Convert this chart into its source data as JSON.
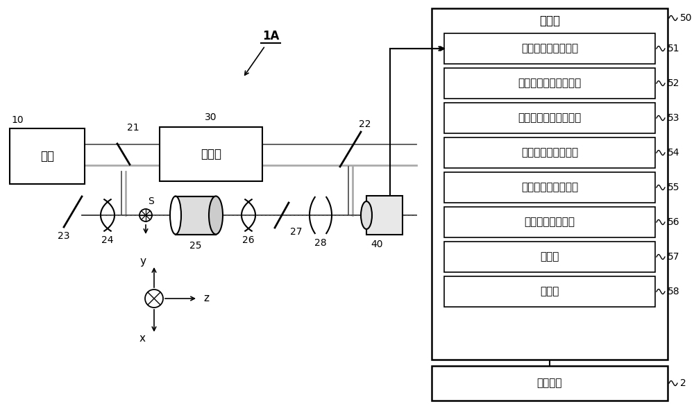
{
  "bg_color": "#ffffff",
  "fig_width": 10.0,
  "fig_height": 5.92,
  "label_1A": "1A",
  "label_10": "10",
  "label_21": "21",
  "label_22": "22",
  "label_23": "23",
  "label_24": "24",
  "label_25": "25",
  "label_26": "26",
  "label_27": "27",
  "label_28": "28",
  "label_30": "30",
  "label_40": "40",
  "label_50": "50",
  "label_51": "51",
  "label_52": "52",
  "label_53": "53",
  "label_54": "54",
  "label_55": "55",
  "label_56": "56",
  "label_57": "57",
  "label_58": "58",
  "label_2": "2",
  "label_S": "S",
  "text_guangyuan": "光源",
  "text_pinyiqi": "移频器",
  "text_jiexi": "解析部",
  "text_box51": "干涉强度图像取得部",
  "text_box52": "第一复振幅图像生成部",
  "text_box53": "第二复振幅图像生成部",
  "text_box54": "二维相位图像生成部",
  "text_box55": "三维相位图像生成部",
  "text_box56": "折射率分布计算部",
  "text_box57": "显示部",
  "text_box58": "存储部",
  "text_box2": "存储介质",
  "text_y": "y",
  "text_z": "z",
  "text_x": "x"
}
